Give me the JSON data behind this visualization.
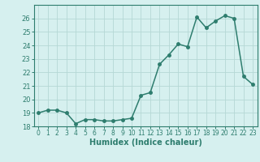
{
  "x": [
    0,
    1,
    2,
    3,
    4,
    5,
    6,
    7,
    8,
    9,
    10,
    11,
    12,
    13,
    14,
    15,
    16,
    17,
    18,
    19,
    20,
    21,
    22,
    23
  ],
  "y": [
    19.0,
    19.2,
    19.2,
    19.0,
    18.2,
    18.5,
    18.5,
    18.4,
    18.4,
    18.5,
    18.6,
    20.3,
    20.5,
    22.6,
    23.3,
    24.1,
    23.9,
    26.1,
    25.3,
    25.8,
    26.2,
    26.0,
    21.7,
    21.1
  ],
  "line_color": "#2e7d6e",
  "marker": "o",
  "markersize": 2.5,
  "linewidth": 1.1,
  "bg_color": "#d6f0ef",
  "grid_color": "#b5d8d5",
  "xlabel": "Humidex (Indice chaleur)",
  "ylim": [
    18,
    27
  ],
  "xlim": [
    -0.5,
    23.5
  ],
  "yticks": [
    18,
    19,
    20,
    21,
    22,
    23,
    24,
    25,
    26
  ],
  "xticks": [
    0,
    1,
    2,
    3,
    4,
    5,
    6,
    7,
    8,
    9,
    10,
    11,
    12,
    13,
    14,
    15,
    16,
    17,
    18,
    19,
    20,
    21,
    22,
    23
  ],
  "tick_color": "#2e7d6e",
  "label_color": "#2e7d6e",
  "spine_color": "#2e7d6e"
}
